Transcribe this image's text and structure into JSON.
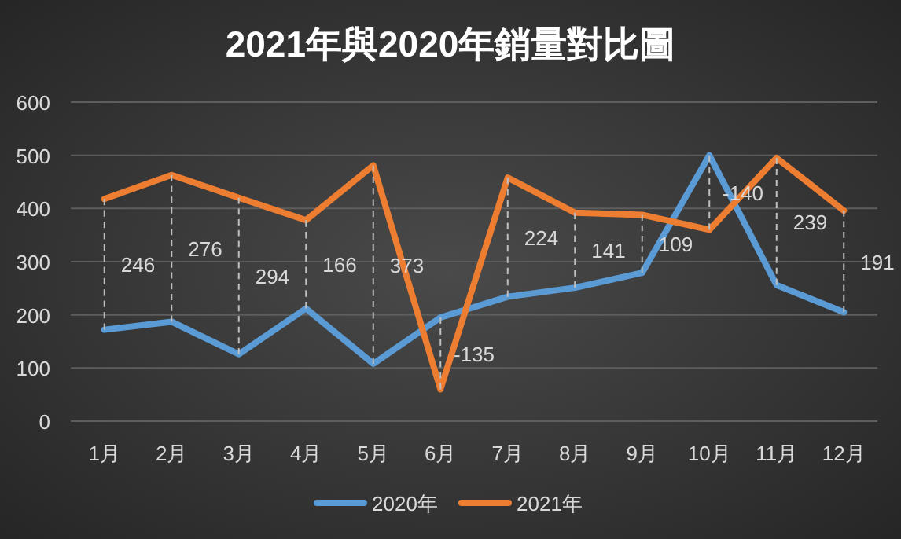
{
  "chart_data": {
    "type": "line",
    "title": "2021年與2020年銷量對比圖",
    "categories": [
      "1月",
      "2月",
      "3月",
      "4月",
      "5月",
      "6月",
      "7月",
      "8月",
      "9月",
      "10月",
      "11月",
      "12月"
    ],
    "series": [
      {
        "name": "2020年",
        "color": "#5b9bd5",
        "values": [
          172,
          187,
          126,
          212,
          108,
          195,
          234,
          251,
          279,
          500,
          256,
          205
        ],
        "errors": [
          [
            172,
            418
          ],
          [
            187,
            463
          ],
          [
            126,
            420
          ],
          [
            212,
            378
          ],
          [
            108,
            481
          ],
          [
            60,
            195
          ],
          [
            234,
            458
          ],
          [
            251,
            392
          ],
          [
            279,
            388
          ],
          [
            360,
            500
          ],
          [
            256,
            495
          ],
          [
            205,
            396
          ]
        ]
      },
      {
        "name": "2021年",
        "color": "#ed7d31",
        "values": [
          418,
          463,
          420,
          378,
          481,
          60,
          458,
          392,
          388,
          360,
          495,
          396
        ]
      }
    ],
    "ylim": [
      0,
      600
    ],
    "yticks": [
      0,
      100,
      200,
      300,
      400,
      500,
      600
    ],
    "grid": "y",
    "legend": "bottom",
    "marker": "none",
    "line_style": "solid",
    "annotations": [
      "246",
      "276",
      "294",
      "166",
      "373",
      "-135",
      "224",
      "141",
      "109",
      "-140",
      "239",
      "191"
    ]
  }
}
